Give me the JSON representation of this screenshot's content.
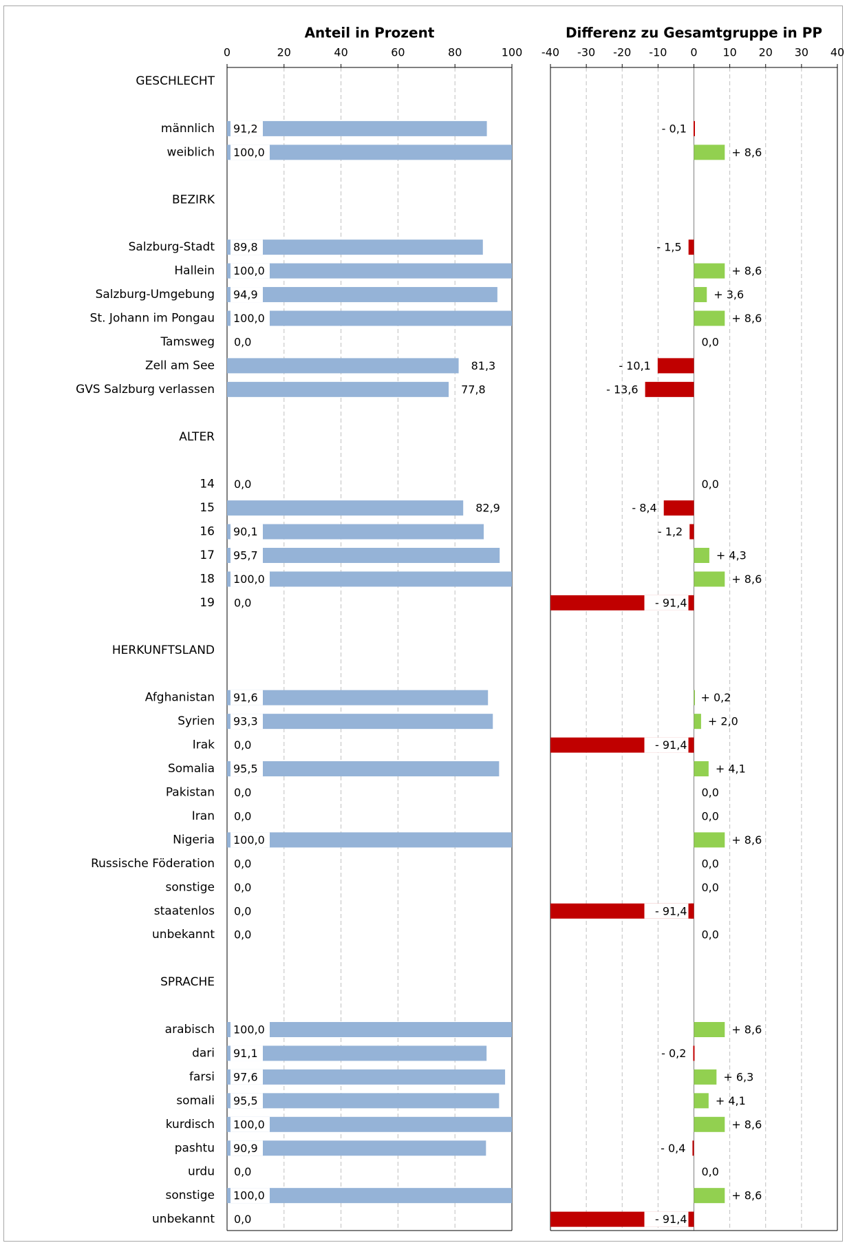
{
  "chart_data": [
    {
      "type": "bar",
      "orientation": "horizontal",
      "title": "Anteil in Prozent",
      "xlim": [
        0,
        100
      ],
      "ticks": [
        0,
        20,
        40,
        60,
        80,
        100
      ],
      "grid": true,
      "color": "#95b3d7",
      "rows": [
        {
          "label": "GESCHLECHT",
          "header": true
        },
        {
          "label": "",
          "spacer": true
        },
        {
          "label": "männlich",
          "value": 91.2,
          "text": "91,2"
        },
        {
          "label": "weiblich",
          "value": 100.0,
          "text": "100,0"
        },
        {
          "label": "",
          "spacer": true
        },
        {
          "label": "BEZIRK",
          "header": true
        },
        {
          "label": "",
          "spacer": true
        },
        {
          "label": "Salzburg-Stadt",
          "value": 89.8,
          "text": "89,8"
        },
        {
          "label": "Hallein",
          "value": 100.0,
          "text": "100,0"
        },
        {
          "label": "Salzburg-Umgebung",
          "value": 94.9,
          "text": "94,9"
        },
        {
          "label": "St. Johann im Pongau",
          "value": 100.0,
          "text": "100,0"
        },
        {
          "label": "Tamsweg",
          "value": 0.0,
          "text": "0,0"
        },
        {
          "label": "Zell am See",
          "value": 81.3,
          "text": "81,3"
        },
        {
          "label": "GVS Salzburg verlassen",
          "value": 77.8,
          "text": "77,8"
        },
        {
          "label": "",
          "spacer": true
        },
        {
          "label": "ALTER",
          "header": true
        },
        {
          "label": "",
          "spacer": true
        },
        {
          "label": "14",
          "value": 0.0,
          "text": "0,0"
        },
        {
          "label": "15",
          "value": 82.9,
          "text": "82,9"
        },
        {
          "label": "16",
          "value": 90.1,
          "text": "90,1"
        },
        {
          "label": "17",
          "value": 95.7,
          "text": "95,7"
        },
        {
          "label": "18",
          "value": 100.0,
          "text": "100,0"
        },
        {
          "label": "19",
          "value": 0.0,
          "text": "0,0"
        },
        {
          "label": "",
          "spacer": true
        },
        {
          "label": "HERKUNFTSLAND",
          "header": true
        },
        {
          "label": "",
          "spacer": true
        },
        {
          "label": "Afghanistan",
          "value": 91.6,
          "text": "91,6"
        },
        {
          "label": "Syrien",
          "value": 93.3,
          "text": "93,3"
        },
        {
          "label": "Irak",
          "value": 0.0,
          "text": "0,0"
        },
        {
          "label": "Somalia",
          "value": 95.5,
          "text": "95,5"
        },
        {
          "label": "Pakistan",
          "value": 0.0,
          "text": "0,0"
        },
        {
          "label": "Iran",
          "value": 0.0,
          "text": "0,0"
        },
        {
          "label": "Nigeria",
          "value": 100.0,
          "text": "100,0"
        },
        {
          "label": "Russische Föderation",
          "value": 0.0,
          "text": "0,0"
        },
        {
          "label": "sonstige",
          "value": 0.0,
          "text": "0,0"
        },
        {
          "label": "staatenlos",
          "value": 0.0,
          "text": "0,0"
        },
        {
          "label": "unbekannt",
          "value": 0.0,
          "text": "0,0"
        },
        {
          "label": "",
          "spacer": true
        },
        {
          "label": "SPRACHE",
          "header": true
        },
        {
          "label": "",
          "spacer": true
        },
        {
          "label": "arabisch",
          "value": 100.0,
          "text": "100,0"
        },
        {
          "label": "dari",
          "value": 91.1,
          "text": "91,1"
        },
        {
          "label": "farsi",
          "value": 97.6,
          "text": "97,6"
        },
        {
          "label": "somali",
          "value": 95.5,
          "text": "95,5"
        },
        {
          "label": "kurdisch",
          "value": 100.0,
          "text": "100,0"
        },
        {
          "label": "pashtu",
          "value": 90.9,
          "text": "90,9"
        },
        {
          "label": "urdu",
          "value": 0.0,
          "text": "0,0"
        },
        {
          "label": "sonstige",
          "value": 100.0,
          "text": "100,0"
        },
        {
          "label": "unbekannt",
          "value": 0.0,
          "text": "0,0"
        }
      ]
    },
    {
      "type": "bar",
      "orientation": "horizontal",
      "title": "Differenz zu Gesamtgruppe in PP",
      "xlim": [
        -40,
        40
      ],
      "ticks": [
        -40,
        -30,
        -20,
        -10,
        0,
        10,
        20,
        30,
        40
      ],
      "grid": true,
      "positive_color": "#92d050",
      "negative_color": "#c00000",
      "rows": [
        {
          "header": true
        },
        {
          "spacer": true
        },
        {
          "value": -0.1,
          "text": "- 0,1"
        },
        {
          "value": 8.6,
          "text": "+ 8,6"
        },
        {
          "spacer": true
        },
        {
          "header": true
        },
        {
          "spacer": true
        },
        {
          "value": -1.5,
          "text": "- 1,5"
        },
        {
          "value": 8.6,
          "text": "+ 8,6"
        },
        {
          "value": 3.6,
          "text": "+ 3,6"
        },
        {
          "value": 8.6,
          "text": "+ 8,6"
        },
        {
          "value": 0.0,
          "text": "0,0"
        },
        {
          "value": -10.1,
          "text": "- 10,1"
        },
        {
          "value": -13.6,
          "text": "- 13,6"
        },
        {
          "spacer": true
        },
        {
          "header": true
        },
        {
          "spacer": true
        },
        {
          "value": 0.0,
          "text": "0,0"
        },
        {
          "value": -8.4,
          "text": "- 8,4"
        },
        {
          "value": -1.2,
          "text": "- 1,2"
        },
        {
          "value": 4.3,
          "text": "+ 4,3"
        },
        {
          "value": 8.6,
          "text": "+ 8,6"
        },
        {
          "value": -91.4,
          "text": "- 91,4"
        },
        {
          "spacer": true
        },
        {
          "header": true
        },
        {
          "spacer": true
        },
        {
          "value": 0.2,
          "text": "+ 0,2"
        },
        {
          "value": 2.0,
          "text": "+ 2,0"
        },
        {
          "value": -91.4,
          "text": "- 91,4"
        },
        {
          "value": 4.1,
          "text": "+ 4,1"
        },
        {
          "value": 0.0,
          "text": "0,0"
        },
        {
          "value": 0.0,
          "text": "0,0"
        },
        {
          "value": 8.6,
          "text": "+ 8,6"
        },
        {
          "value": 0.0,
          "text": "0,0"
        },
        {
          "value": 0.0,
          "text": "0,0"
        },
        {
          "value": -91.4,
          "text": "- 91,4"
        },
        {
          "value": 0.0,
          "text": "0,0"
        },
        {
          "spacer": true
        },
        {
          "header": true
        },
        {
          "spacer": true
        },
        {
          "value": 8.6,
          "text": "+ 8,6"
        },
        {
          "value": -0.2,
          "text": "- 0,2"
        },
        {
          "value": 6.3,
          "text": "+ 6,3"
        },
        {
          "value": 4.1,
          "text": "+ 4,1"
        },
        {
          "value": 8.6,
          "text": "+ 8,6"
        },
        {
          "value": -0.4,
          "text": "- 0,4"
        },
        {
          "value": 0.0,
          "text": "0,0"
        },
        {
          "value": 8.6,
          "text": "+ 8,6"
        },
        {
          "value": -91.4,
          "text": "- 91,4"
        }
      ]
    }
  ]
}
